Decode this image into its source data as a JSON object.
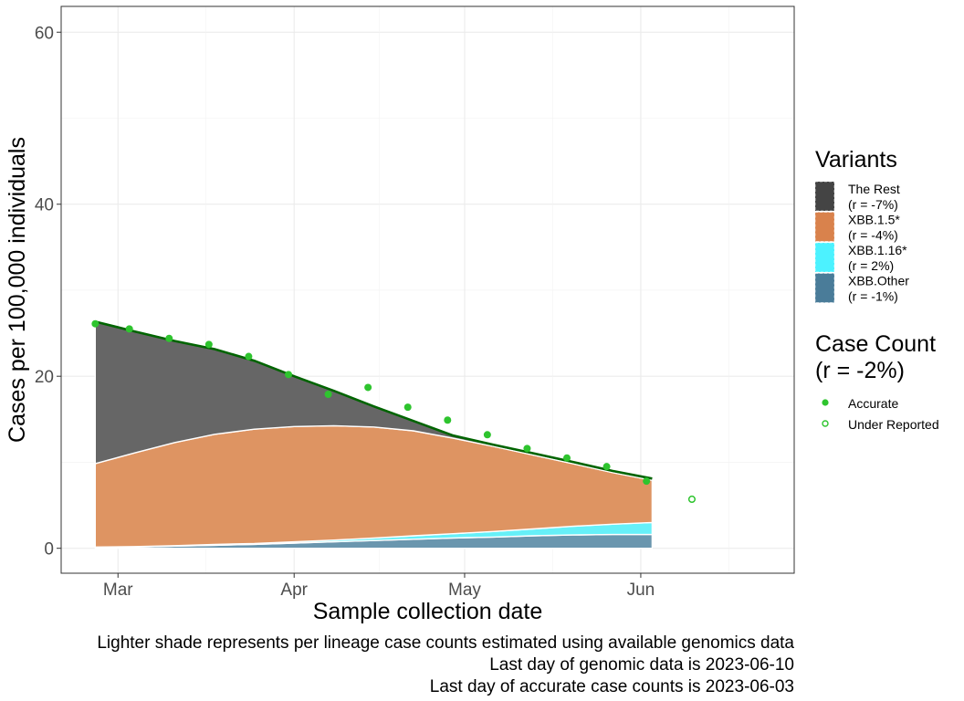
{
  "chart_data": {
    "type": "area",
    "xlabel": "Sample collection date",
    "ylabel": "Cases per 100,000 individuals",
    "x_ticks": [
      {
        "date": "2023-03-01",
        "label": "Mar"
      },
      {
        "date": "2023-04-01",
        "label": "Apr"
      },
      {
        "date": "2023-05-01",
        "label": "May"
      },
      {
        "date": "2023-06-01",
        "label": "Jun"
      }
    ],
    "y_ticks": [
      0,
      20,
      40,
      60
    ],
    "xlim": [
      "2023-02-19",
      "2023-06-28"
    ],
    "ylim": [
      -2.9,
      63
    ],
    "grid": true,
    "legend_position": "right",
    "dates": [
      "2023-02-25",
      "2023-03-04",
      "2023-03-11",
      "2023-03-18",
      "2023-03-25",
      "2023-04-01",
      "2023-04-08",
      "2023-04-15",
      "2023-04-22",
      "2023-04-29",
      "2023-05-06",
      "2023-05-13",
      "2023-05-20",
      "2023-05-27",
      "2023-06-03"
    ],
    "stack_series": [
      {
        "name": "XBB.Other",
        "legend_label": [
          "XBB.Other",
          "(r = -1%)"
        ],
        "color": "#4a7c99",
        "fill": "#6a96ae",
        "values": [
          0.1,
          0.15,
          0.25,
          0.35,
          0.45,
          0.6,
          0.75,
          0.9,
          1.05,
          1.2,
          1.3,
          1.45,
          1.55,
          1.6,
          1.6
        ]
      },
      {
        "name": "XBB.1.16*",
        "legend_label": [
          "XBB.1.16*",
          "(r = 2%)"
        ],
        "color": "#4cf2ff",
        "fill": "#66f0f8",
        "values": [
          0.05,
          0.05,
          0.05,
          0.1,
          0.1,
          0.15,
          0.2,
          0.3,
          0.4,
          0.5,
          0.65,
          0.8,
          1.0,
          1.2,
          1.4
        ]
      },
      {
        "name": "XBB.1.5*",
        "legend_label": [
          "XBB.1.5*",
          "(r = -4%)"
        ],
        "color": "#d9824c",
        "fill": "#de9462",
        "values": [
          9.7,
          10.9,
          12.0,
          12.8,
          13.3,
          13.4,
          13.3,
          12.9,
          12.2,
          11.1,
          9.9,
          8.6,
          7.3,
          6.0,
          4.9
        ]
      },
      {
        "name": "The Rest",
        "legend_label": [
          "The Rest",
          "(r = -7%)"
        ],
        "color": "#444444",
        "fill": "#666666",
        "values": [
          16.5,
          14.1,
          11.8,
          9.9,
          7.95,
          5.85,
          4.05,
          2.4,
          1.15,
          0.3,
          0.2,
          0.2,
          0.2,
          0.2,
          0.2
        ]
      }
    ],
    "case_count_line": {
      "color": "#006400",
      "values": [
        26.35,
        25.2,
        24.1,
        23.15,
        21.8,
        20.0,
        18.3,
        16.5,
        14.8,
        13.1,
        12.05,
        11.05,
        10.05,
        9.0,
        8.1
      ]
    },
    "case_points": {
      "accurate": {
        "label": "Accurate",
        "color": "#2ec42e",
        "points": [
          [
            "2023-02-25",
            26.1
          ],
          [
            "2023-03-03",
            25.5
          ],
          [
            "2023-03-10",
            24.4
          ],
          [
            "2023-03-17",
            23.7
          ],
          [
            "2023-03-24",
            22.3
          ],
          [
            "2023-03-31",
            20.2
          ],
          [
            "2023-04-07",
            17.9
          ],
          [
            "2023-04-14",
            18.7
          ],
          [
            "2023-04-21",
            16.4
          ],
          [
            "2023-04-28",
            14.9
          ],
          [
            "2023-05-05",
            13.2
          ],
          [
            "2023-05-12",
            11.6
          ],
          [
            "2023-05-19",
            10.5
          ],
          [
            "2023-05-26",
            9.5
          ],
          [
            "2023-06-02",
            7.8
          ]
        ]
      },
      "under_reported": {
        "label": "Under Reported",
        "color": "#2ec42e",
        "points": [
          [
            "2023-06-10",
            5.7
          ]
        ]
      }
    },
    "legend": {
      "variants_title": "Variants",
      "case_title_lines": [
        "Case Count",
        "(r = -2%)"
      ]
    },
    "caption_lines": [
      "Lighter shade represents per lineage case counts estimated using available genomics data",
      "Last day of genomic data is 2023-06-10",
      "Last day of accurate case counts is 2023-06-03"
    ]
  }
}
